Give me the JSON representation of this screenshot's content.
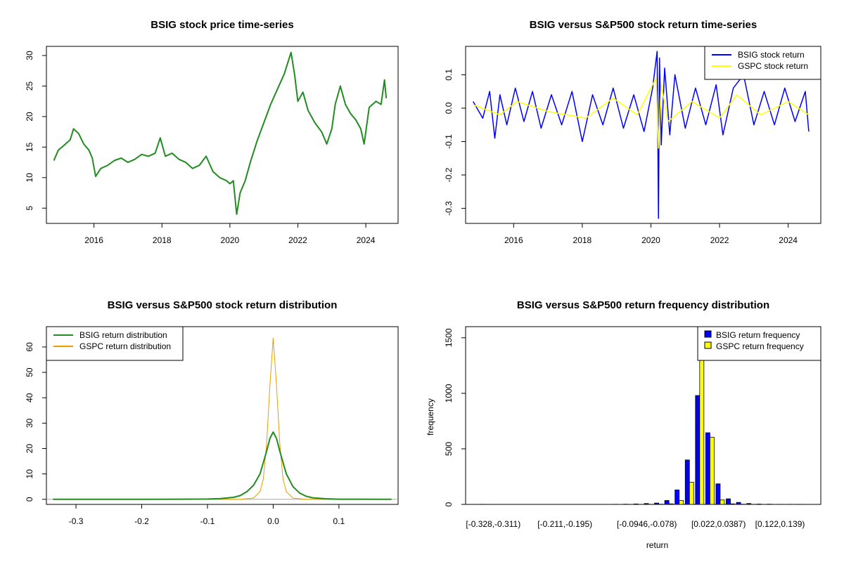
{
  "colors": {
    "price": "#228B22",
    "bsig_return": "#0000FF",
    "gspc_return": "#FFFF00",
    "bsig_density": "#228B22",
    "gspc_density": "#E69F00",
    "bsig_hist": "#0000FF",
    "gspc_hist": "#FFFF00"
  },
  "chart_data": [
    {
      "id": "price",
      "type": "line",
      "title": "BSIG stock price time-series",
      "xlabel": "",
      "ylabel": "",
      "xlim": [
        2014.6,
        2024.95
      ],
      "ylim": [
        2.5,
        31.5
      ],
      "xticks": [
        2016,
        2018,
        2020,
        2022,
        2024
      ],
      "xtick_labels": [
        "2016",
        "2018",
        "2020",
        "2022",
        "2024"
      ],
      "yticks": [
        5,
        10,
        15,
        20,
        25,
        30
      ],
      "ytick_labels": [
        "5",
        "10",
        "15",
        "20",
        "25",
        "30"
      ],
      "series": [
        {
          "name": "BSIG price",
          "x": [
            2014.82,
            2014.95,
            2015.1,
            2015.3,
            2015.4,
            2015.55,
            2015.7,
            2015.85,
            2015.95,
            2016.05,
            2016.2,
            2016.4,
            2016.6,
            2016.8,
            2017.0,
            2017.2,
            2017.4,
            2017.6,
            2017.8,
            2017.95,
            2018.1,
            2018.3,
            2018.5,
            2018.7,
            2018.9,
            2019.1,
            2019.3,
            2019.5,
            2019.7,
            2019.9,
            2020.0,
            2020.1,
            2020.2,
            2020.3,
            2020.45,
            2020.6,
            2020.8,
            2021.0,
            2021.2,
            2021.4,
            2021.6,
            2021.8,
            2021.9,
            2022.0,
            2022.15,
            2022.3,
            2022.5,
            2022.7,
            2022.85,
            2023.0,
            2023.1,
            2023.25,
            2023.4,
            2023.55,
            2023.7,
            2023.85,
            2023.95,
            2024.1,
            2024.3,
            2024.45,
            2024.55,
            2024.6
          ],
          "values": [
            12.8,
            14.5,
            15.2,
            16.2,
            18.0,
            17.2,
            15.5,
            14.5,
            13.2,
            10.2,
            11.5,
            12.0,
            12.8,
            13.2,
            12.5,
            13.0,
            13.8,
            13.5,
            14.0,
            16.5,
            13.5,
            14.0,
            13.0,
            12.5,
            11.5,
            12.0,
            13.5,
            11.0,
            10.0,
            9.5,
            9.0,
            9.5,
            4.0,
            7.5,
            9.5,
            12.5,
            16.0,
            19.0,
            22.0,
            24.5,
            27.0,
            30.5,
            27.0,
            22.5,
            24.0,
            21.0,
            19.0,
            17.5,
            15.5,
            18.0,
            22.0,
            25.0,
            22.0,
            20.5,
            19.5,
            18.0,
            15.5,
            21.5,
            22.5,
            22.0,
            26.0,
            23.0
          ]
        }
      ]
    },
    {
      "id": "returns",
      "type": "line",
      "title": "BSIG versus S&P500 stock return time-series",
      "xlabel": "",
      "ylabel": "",
      "xlim": [
        2014.6,
        2024.95
      ],
      "ylim": [
        -0.345,
        0.185
      ],
      "xticks": [
        2016,
        2018,
        2020,
        2022,
        2024
      ],
      "xtick_labels": [
        "2016",
        "2018",
        "2020",
        "2022",
        "2024"
      ],
      "yticks": [
        -0.3,
        -0.2,
        -0.1,
        0.0,
        0.1
      ],
      "ytick_labels": [
        "-0.3",
        "-0.2",
        "-0.1",
        "0.0",
        "0.1"
      ],
      "legend": {
        "position": "top-right",
        "entries": [
          "BSIG stock return",
          "GSPC stock return"
        ]
      },
      "series": [
        {
          "name": "BSIG stock return",
          "x": [
            2014.82,
            2015.1,
            2015.3,
            2015.45,
            2015.6,
            2015.8,
            2016.05,
            2016.3,
            2016.55,
            2016.8,
            2017.1,
            2017.4,
            2017.7,
            2018.0,
            2018.3,
            2018.6,
            2018.9,
            2019.2,
            2019.5,
            2019.8,
            2020.05,
            2020.18,
            2020.22,
            2020.25,
            2020.3,
            2020.4,
            2020.55,
            2020.7,
            2021.0,
            2021.3,
            2021.6,
            2021.9,
            2022.1,
            2022.4,
            2022.7,
            2023.0,
            2023.3,
            2023.6,
            2023.9,
            2024.2,
            2024.5,
            2024.6
          ],
          "values": [
            0.02,
            -0.03,
            0.05,
            -0.09,
            0.04,
            -0.05,
            0.06,
            -0.04,
            0.05,
            -0.06,
            0.04,
            -0.05,
            0.05,
            -0.1,
            0.04,
            -0.05,
            0.06,
            -0.06,
            0.04,
            -0.07,
            0.06,
            0.17,
            -0.33,
            0.15,
            -0.11,
            0.12,
            -0.08,
            0.1,
            -0.06,
            0.06,
            -0.05,
            0.07,
            -0.08,
            0.06,
            0.1,
            -0.05,
            0.05,
            -0.05,
            0.06,
            -0.04,
            0.05,
            -0.07
          ]
        },
        {
          "name": "GSPC stock return",
          "x": [
            2014.82,
            2015.6,
            2016.1,
            2017.0,
            2018.1,
            2018.9,
            2019.6,
            2020.15,
            2020.22,
            2020.3,
            2020.5,
            2021.2,
            2022.0,
            2022.5,
            2023.2,
            2024.0,
            2024.6
          ],
          "values": [
            0.01,
            -0.02,
            0.02,
            -0.01,
            -0.03,
            0.03,
            -0.02,
            0.09,
            -0.12,
            0.07,
            -0.04,
            0.02,
            -0.03,
            0.04,
            -0.02,
            0.02,
            -0.02
          ]
        }
      ]
    },
    {
      "id": "density",
      "type": "line",
      "title": "BSIG versus S&P500 stock return distribution",
      "xlabel": "",
      "ylabel": "",
      "xlim": [
        -0.345,
        0.19
      ],
      "ylim": [
        -2,
        68
      ],
      "xticks": [
        -0.3,
        -0.2,
        -0.1,
        0.0,
        0.1
      ],
      "xtick_labels": [
        "-0.3",
        "-0.2",
        "-0.1",
        "0.0",
        "0.1"
      ],
      "yticks": [
        0,
        10,
        20,
        30,
        40,
        50,
        60
      ],
      "ytick_labels": [
        "0",
        "10",
        "20",
        "30",
        "40",
        "50",
        "60"
      ],
      "legend": {
        "position": "top-left",
        "entries": [
          "BSIG return distribution",
          "GSPC return distribution"
        ]
      },
      "series": [
        {
          "name": "BSIG return distribution",
          "x": [
            -0.335,
            -0.2,
            -0.1,
            -0.08,
            -0.06,
            -0.05,
            -0.04,
            -0.03,
            -0.02,
            -0.01,
            -0.005,
            0.0,
            0.005,
            0.01,
            0.02,
            0.03,
            0.04,
            0.05,
            0.06,
            0.08,
            0.1,
            0.18
          ],
          "values": [
            0,
            0,
            0.1,
            0.3,
            0.8,
            1.5,
            3,
            5.5,
            10,
            19,
            24,
            26.5,
            24,
            19,
            10,
            5,
            2.5,
            1.2,
            0.6,
            0.2,
            0.05,
            0
          ]
        },
        {
          "name": "GSPC return distribution",
          "x": [
            -0.14,
            -0.05,
            -0.03,
            -0.02,
            -0.015,
            -0.01,
            -0.005,
            0.0,
            0.005,
            0.01,
            0.015,
            0.02,
            0.03,
            0.05,
            0.1
          ],
          "values": [
            0,
            0,
            0.5,
            3,
            8,
            22,
            45,
            63.5,
            45,
            22,
            8,
            3,
            0.5,
            0,
            0
          ]
        }
      ]
    },
    {
      "id": "histogram",
      "type": "bar",
      "title": "BSIG versus S&P500 return frequency distribution",
      "xlabel": "return",
      "ylabel": "frequency",
      "ylim": [
        0,
        1600
      ],
      "yticks": [
        0,
        500,
        1000,
        1500
      ],
      "ytick_labels": [
        "0",
        "500",
        "1000",
        "1500"
      ],
      "category_labels_shown": [
        {
          "index": 0,
          "label": "[-0.328,-0.311)"
        },
        {
          "index": 7,
          "label": "[-0.211,-0.195)"
        },
        {
          "index": 15,
          "label": "[-0.0946,-0.078)"
        },
        {
          "index": 22,
          "label": "[0.022,0.0387)"
        },
        {
          "index": 28,
          "label": "[0.122,0.139)"
        }
      ],
      "legend": {
        "position": "top-right",
        "entries": [
          "BSIG return frequency",
          "GSPC return frequency"
        ]
      },
      "series": [
        {
          "name": "BSIG return frequency",
          "values": [
            1,
            0,
            0,
            0,
            0,
            0,
            0,
            0,
            0,
            0,
            0,
            0,
            0,
            1,
            2,
            4,
            8,
            12,
            35,
            130,
            400,
            980,
            645,
            185,
            50,
            18,
            8,
            3,
            2,
            1,
            1,
            1
          ]
        },
        {
          "name": "GSPC return frequency",
          "values": [
            0,
            0,
            0,
            0,
            0,
            0,
            0,
            0,
            0,
            0,
            0,
            0,
            0,
            0,
            0,
            0,
            1,
            2,
            5,
            35,
            200,
            1620,
            605,
            40,
            5,
            2,
            1,
            0,
            0,
            0,
            0,
            0
          ]
        }
      ]
    }
  ]
}
